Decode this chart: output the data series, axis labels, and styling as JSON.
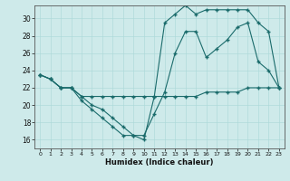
{
  "xlabel": "Humidex (Indice chaleur)",
  "xlim": [
    -0.5,
    23.5
  ],
  "ylim": [
    15.0,
    31.5
  ],
  "xticks": [
    0,
    1,
    2,
    3,
    4,
    5,
    6,
    7,
    8,
    9,
    10,
    11,
    12,
    13,
    14,
    15,
    16,
    17,
    18,
    19,
    20,
    21,
    22,
    23
  ],
  "yticks": [
    16,
    18,
    20,
    22,
    24,
    26,
    28,
    30
  ],
  "bg_color": "#ceeaea",
  "line_color": "#1a6b6b",
  "line1_x": [
    0,
    1,
    2,
    3,
    4,
    5,
    6,
    7,
    8,
    9,
    10,
    11,
    12,
    13,
    14,
    15,
    16,
    17,
    18,
    19,
    20,
    21,
    22,
    23
  ],
  "line1_y": [
    23.5,
    23.0,
    22.0,
    22.0,
    21.0,
    21.0,
    21.0,
    21.0,
    21.0,
    21.0,
    21.0,
    21.0,
    21.0,
    21.0,
    21.0,
    21.0,
    21.5,
    21.5,
    21.5,
    21.5,
    22.0,
    22.0,
    22.0,
    22.0
  ],
  "line2_x": [
    0,
    1,
    2,
    3,
    4,
    5,
    6,
    7,
    8,
    9,
    10,
    11,
    12,
    13,
    14,
    15,
    16,
    17,
    18,
    19,
    20,
    21,
    22,
    23
  ],
  "line2_y": [
    23.5,
    23.0,
    22.0,
    22.0,
    21.0,
    20.0,
    19.5,
    18.5,
    17.5,
    16.5,
    16.5,
    19.0,
    21.5,
    26.0,
    28.5,
    28.5,
    25.5,
    26.5,
    27.5,
    29.0,
    29.5,
    25.0,
    24.0,
    22.0
  ],
  "line3_x": [
    0,
    1,
    2,
    3,
    4,
    5,
    6,
    7,
    8,
    9,
    10,
    11,
    12,
    13,
    14,
    15,
    16,
    17,
    18,
    19,
    20,
    21,
    22,
    23
  ],
  "line3_y": [
    23.5,
    23.0,
    22.0,
    22.0,
    20.5,
    19.5,
    18.5,
    17.5,
    16.5,
    16.5,
    16.0,
    21.0,
    29.5,
    30.5,
    31.5,
    30.5,
    31.0,
    31.0,
    31.0,
    31.0,
    31.0,
    29.5,
    28.5,
    22.0
  ]
}
